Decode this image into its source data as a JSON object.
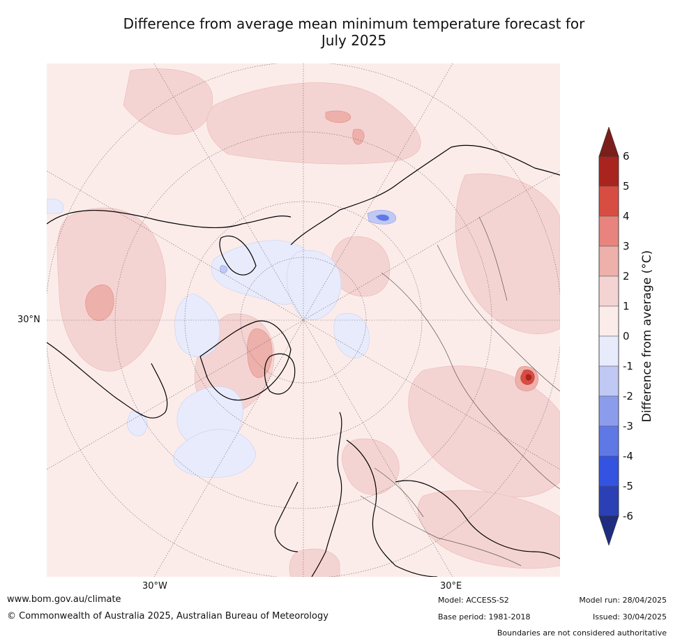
{
  "title": {
    "line1": "Difference from average mean minimum temperature forecast for",
    "line2": "July 2025"
  },
  "map": {
    "projection": "north-polar-stereographic",
    "lat_label": "30°N",
    "lon_labels": [
      "30°W",
      "30°E"
    ]
  },
  "colorbar": {
    "label": "Difference from average (°C)",
    "ticks": [
      "6",
      "5",
      "4",
      "3",
      "2",
      "1",
      "0",
      "-1",
      "-2",
      "-3",
      "-4",
      "-5",
      "-6"
    ],
    "bins": [
      {
        "range": "5 to 6",
        "color": "#a9241e"
      },
      {
        "range": "4 to 5",
        "color": "#d84d42"
      },
      {
        "range": "3 to 4",
        "color": "#e8847d"
      },
      {
        "range": "2 to 3",
        "color": "#eeb0aa"
      },
      {
        "range": "1 to 2",
        "color": "#f4d4d2"
      },
      {
        "range": "0 to 1",
        "color": "#fbecea"
      },
      {
        "range": "-1 to 0",
        "color": "#e8ebfb"
      },
      {
        "range": "-2 to -1",
        "color": "#c0c8f4"
      },
      {
        "range": "-3 to -2",
        "color": "#8c9cec"
      },
      {
        "range": "-4 to -3",
        "color": "#5f78e6"
      },
      {
        "range": "-5 to -4",
        "color": "#3353e0"
      },
      {
        "range": "-6 to -5",
        "color": "#2a40b4"
      }
    ],
    "over_color": "#7a1f1b",
    "under_color": "#1f2d80"
  },
  "footer": {
    "url": "www.bom.gov.au/climate",
    "copyright": "© Commonwealth of Australia 2025, Australian Bureau of Meteorology",
    "model": "Model: ACCESS-S2",
    "base_period": "Base period: 1981-2018",
    "model_run": "Model run: 28/04/2025",
    "issued": "Issued: 30/04/2025",
    "boundaries_note": "Boundaries are not considered authoritative"
  }
}
